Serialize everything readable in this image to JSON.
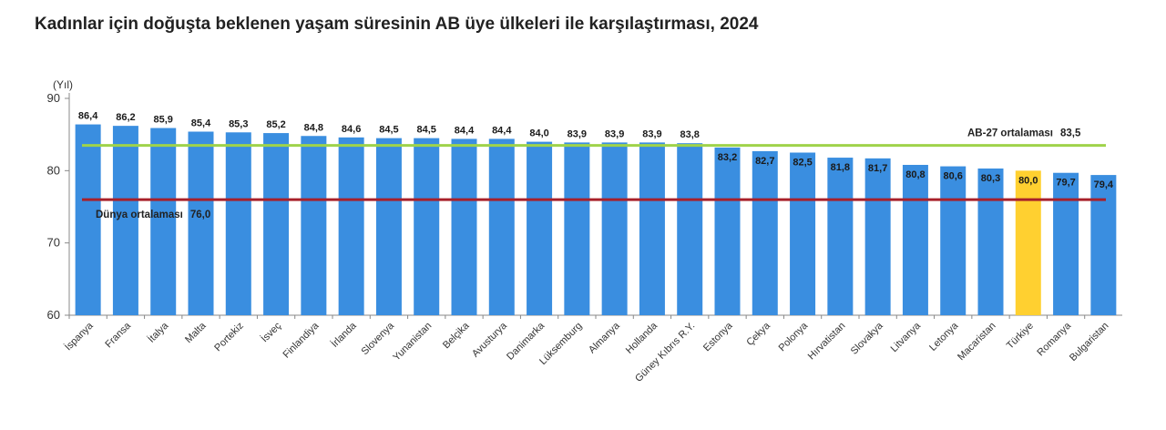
{
  "title": "Kadınlar için doğuşta beklenen yaşam süresinin AB üye ülkeleri ile karşılaştırması, 2024",
  "chart_data": {
    "type": "bar",
    "title": "Kadınlar için doğuşta beklenen yaşam süresinin AB üye ülkeleri ile karşılaştırması, 2024",
    "unit": "(Yıl)",
    "ylim": [
      60,
      90
    ],
    "yticks": [
      "60",
      "70",
      "80",
      "90"
    ],
    "categories": [
      "İspanya",
      "Fransa",
      "İtalya",
      "Malta",
      "Portekiz",
      "İsveç",
      "Finlandiya",
      "İrlanda",
      "Slovenya",
      "Yunanistan",
      "Belçika",
      "Avusturya",
      "Danimarka",
      "Lüksemburg",
      "Almanya",
      "Hollanda",
      "Güney Kıbrıs R.Y.",
      "Estonya",
      "Çekya",
      "Polonya",
      "Hırvatistan",
      "Slovakya",
      "Litvanya",
      "Letonya",
      "Macaristan",
      "Türkiye",
      "Romanya",
      "Bulgaristan"
    ],
    "values": [
      86.4,
      86.2,
      85.9,
      85.4,
      85.3,
      85.2,
      84.8,
      84.6,
      84.5,
      84.5,
      84.4,
      84.4,
      84.0,
      83.9,
      83.9,
      83.9,
      83.8,
      83.2,
      82.7,
      82.5,
      81.8,
      81.7,
      80.8,
      80.6,
      80.3,
      80.0,
      79.7,
      79.4
    ],
    "value_labels": [
      "86,4",
      "86,2",
      "85,9",
      "85,4",
      "85,3",
      "85,2",
      "84,8",
      "84,6",
      "84,5",
      "84,5",
      "84,4",
      "84,4",
      "84,0",
      "83,9",
      "83,9",
      "83,9",
      "83,8",
      "83,2",
      "82,7",
      "82,5",
      "81,8",
      "81,7",
      "80,8",
      "80,6",
      "80,3",
      "80,0",
      "79,7",
      "79,4"
    ],
    "highlight_category": "Türkiye",
    "bar_color": "#3a8ee0",
    "highlight_color": "#ffd030",
    "reference_lines": [
      {
        "label": "AB-27 ortalaması",
        "value": 83.5,
        "value_label": "83,5",
        "color": "#9fd34a"
      },
      {
        "label": "Dünya ortalaması",
        "value": 76.0,
        "value_label": "76,0",
        "color": "#a8202a"
      }
    ],
    "grid": false,
    "legend": "none"
  }
}
